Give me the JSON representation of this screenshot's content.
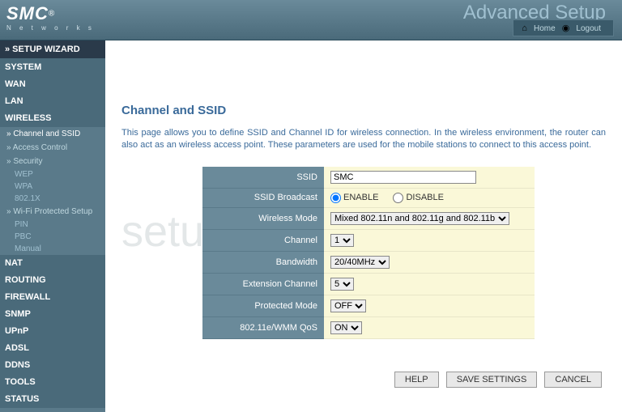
{
  "header": {
    "logo_main": "SMC",
    "logo_sub": "N e t w o r k s",
    "adv_text": "Advanced Setup",
    "nav_home": "Home",
    "nav_logout": "Logout"
  },
  "sidebar": {
    "setup_wizard": "» SETUP WIZARD",
    "items": [
      {
        "label": "SYSTEM"
      },
      {
        "label": "WAN"
      },
      {
        "label": "LAN"
      },
      {
        "label": "WIRELESS"
      }
    ],
    "wireless_sub": [
      {
        "label": "» Channel and SSID",
        "active": true
      },
      {
        "label": "» Access Control"
      },
      {
        "label": "» Security"
      }
    ],
    "security_sub": [
      {
        "label": "WEP"
      },
      {
        "label": "WPA"
      },
      {
        "label": "802.1X"
      }
    ],
    "wps": {
      "label": "» Wi-Fi Protected Setup"
    },
    "wps_sub": [
      {
        "label": "PIN"
      },
      {
        "label": "PBC"
      },
      {
        "label": "Manual"
      }
    ],
    "items2": [
      {
        "label": "NAT"
      },
      {
        "label": "ROUTING"
      },
      {
        "label": "FIREWALL"
      },
      {
        "label": "SNMP"
      },
      {
        "label": "UPnP"
      },
      {
        "label": "ADSL"
      },
      {
        "label": "DDNS"
      },
      {
        "label": "TOOLS"
      },
      {
        "label": "STATUS"
      }
    ]
  },
  "page": {
    "title": "Channel and SSID",
    "desc": "This page allows you to define SSID and Channel ID for wireless connection.  In the wireless environment, the router can also act as an wireless access point.  These parameters are used for the mobile stations to connect to this access point."
  },
  "form": {
    "ssid_label": "SSID",
    "ssid_value": "SMC",
    "broadcast_label": "SSID Broadcast",
    "broadcast_enable": "ENABLE",
    "broadcast_disable": "DISABLE",
    "mode_label": "Wireless Mode",
    "mode_value": "Mixed 802.11n and 802.11g and 802.11b",
    "channel_label": "Channel",
    "channel_value": "1",
    "bandwidth_label": "Bandwidth",
    "bandwidth_value": "20/40MHz",
    "ext_label": "Extension Channel",
    "ext_value": "5",
    "protected_label": "Protected Mode",
    "protected_value": "OFF",
    "qos_label": "802.11e/WMM QoS",
    "qos_value": "ON"
  },
  "buttons": {
    "help": "HELP",
    "save": "SAVE SETTINGS",
    "cancel": "CANCEL"
  },
  "watermark": "setuprouter"
}
